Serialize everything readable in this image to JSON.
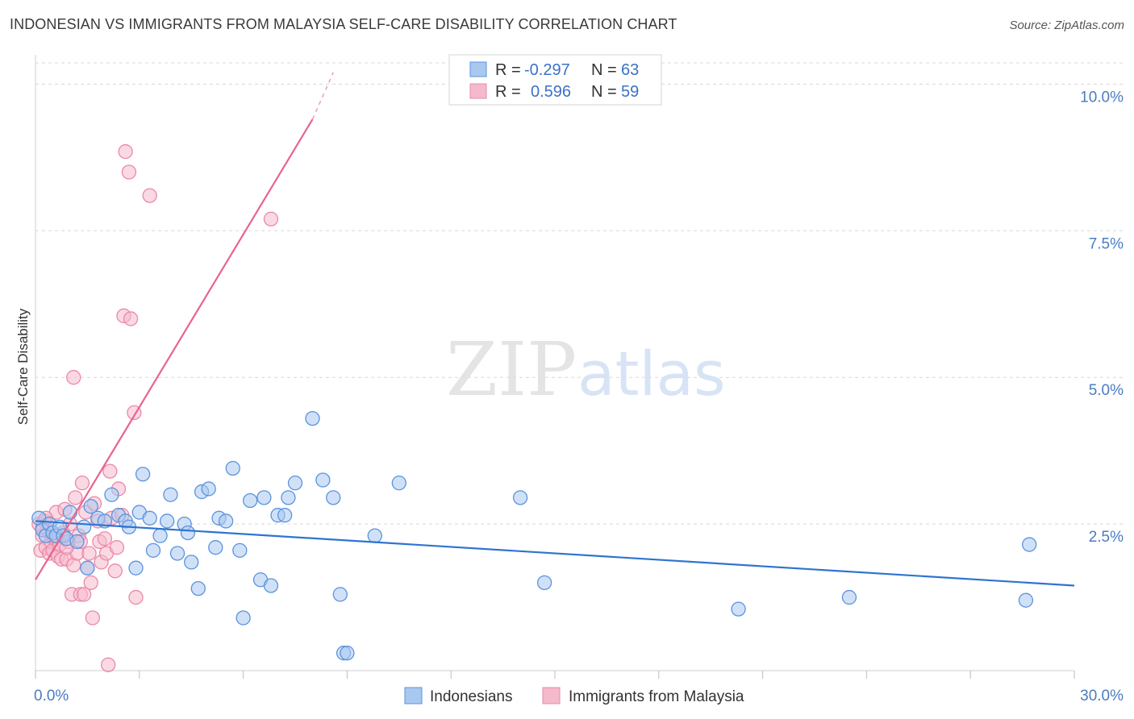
{
  "title": "INDONESIAN VS IMMIGRANTS FROM MALAYSIA SELF-CARE DISABILITY CORRELATION CHART",
  "source": "Source: ZipAtlas.com",
  "watermark": {
    "zip": "ZIP",
    "atlas": "atlas"
  },
  "colors": {
    "blue_fill": "#a9c8f0",
    "blue_stroke": "#5b93de",
    "blue_line": "#2f74d0",
    "pink_fill": "#f5b9cc",
    "pink_stroke": "#ea89a8",
    "pink_line": "#e8648f",
    "tick_text": "#4a7cc4",
    "grid": "#d8d8d8"
  },
  "legend": {
    "rows": [
      {
        "r_label": "R =",
        "r_value": "-0.297",
        "n_label": "N =",
        "n_value": "63"
      },
      {
        "r_label": "R =",
        "r_value": "0.596",
        "n_label": "N =",
        "n_value": "59"
      }
    ]
  },
  "chart_data": {
    "type": "scatter",
    "title": "INDONESIAN VS IMMIGRANTS FROM MALAYSIA SELF-CARE DISABILITY CORRELATION CHART",
    "xlabel": "",
    "ylabel": "Self-Care Disability",
    "xlim": [
      0,
      30
    ],
    "ylim": [
      0,
      10.5
    ],
    "x_tick_labels": [
      {
        "value": 0,
        "label": "0.0%"
      },
      {
        "value": 30,
        "label": "30.0%"
      }
    ],
    "y_ticks": [
      {
        "value": 2.5,
        "label": "2.5%"
      },
      {
        "value": 5.0,
        "label": "5.0%"
      },
      {
        "value": 7.5,
        "label": "7.5%"
      },
      {
        "value": 10.0,
        "label": "10.0%"
      }
    ],
    "x_minor_ticks": [
      0,
      3,
      6,
      9,
      12,
      15,
      18,
      21,
      24,
      27,
      30
    ],
    "series": [
      {
        "name": "Indonesians",
        "color": "blue",
        "trend": {
          "x0": 0,
          "y0": 2.55,
          "x1": 30,
          "y1": 1.45
        },
        "points": [
          [
            0.1,
            2.6
          ],
          [
            0.2,
            2.4
          ],
          [
            0.3,
            2.3
          ],
          [
            0.4,
            2.5
          ],
          [
            0.5,
            2.35
          ],
          [
            0.6,
            2.3
          ],
          [
            0.7,
            2.45
          ],
          [
            0.8,
            2.3
          ],
          [
            0.9,
            2.25
          ],
          [
            1.0,
            2.7
          ],
          [
            1.2,
            2.2
          ],
          [
            1.4,
            2.45
          ],
          [
            1.5,
            1.75
          ],
          [
            1.6,
            2.8
          ],
          [
            1.8,
            2.6
          ],
          [
            2.0,
            2.55
          ],
          [
            2.2,
            3.0
          ],
          [
            2.4,
            2.65
          ],
          [
            2.6,
            2.55
          ],
          [
            2.7,
            2.45
          ],
          [
            2.9,
            1.75
          ],
          [
            3.0,
            2.7
          ],
          [
            3.1,
            3.35
          ],
          [
            3.3,
            2.6
          ],
          [
            3.4,
            2.05
          ],
          [
            3.6,
            2.3
          ],
          [
            3.8,
            2.55
          ],
          [
            3.9,
            3.0
          ],
          [
            4.1,
            2.0
          ],
          [
            4.3,
            2.5
          ],
          [
            4.4,
            2.35
          ],
          [
            4.5,
            1.85
          ],
          [
            4.7,
            1.4
          ],
          [
            4.8,
            3.05
          ],
          [
            5.0,
            3.1
          ],
          [
            5.2,
            2.1
          ],
          [
            5.3,
            2.6
          ],
          [
            5.5,
            2.55
          ],
          [
            5.7,
            3.45
          ],
          [
            5.9,
            2.05
          ],
          [
            6.0,
            0.9
          ],
          [
            6.2,
            2.9
          ],
          [
            6.5,
            1.55
          ],
          [
            6.6,
            2.95
          ],
          [
            6.8,
            1.45
          ],
          [
            7.0,
            2.65
          ],
          [
            7.2,
            2.65
          ],
          [
            7.3,
            2.95
          ],
          [
            7.5,
            3.2
          ],
          [
            8.0,
            4.3
          ],
          [
            8.3,
            3.25
          ],
          [
            8.6,
            2.95
          ],
          [
            8.8,
            1.3
          ],
          [
            8.9,
            0.3
          ],
          [
            9.0,
            0.3
          ],
          [
            9.8,
            2.3
          ],
          [
            10.5,
            3.2
          ],
          [
            14.0,
            2.95
          ],
          [
            14.7,
            1.5
          ],
          [
            20.3,
            1.05
          ],
          [
            23.5,
            1.25
          ],
          [
            28.6,
            1.2
          ],
          [
            28.7,
            2.15
          ]
        ]
      },
      {
        "name": "Immigrants from Malaysia",
        "color": "pink",
        "trend": {
          "x0": 0,
          "y0": 1.55,
          "x1": 8.0,
          "y1": 9.4
        },
        "trend_dashed": {
          "x0": 8.0,
          "y0": 9.4,
          "x1": 8.6,
          "y1": 10.2
        },
        "points": [
          [
            0.1,
            2.5
          ],
          [
            0.15,
            2.05
          ],
          [
            0.2,
            2.3
          ],
          [
            0.25,
            2.55
          ],
          [
            0.3,
            2.1
          ],
          [
            0.35,
            2.4
          ],
          [
            0.4,
            2.0
          ],
          [
            0.45,
            2.2
          ],
          [
            0.5,
            2.05
          ],
          [
            0.55,
            2.25
          ],
          [
            0.6,
            2.7
          ],
          [
            0.65,
            1.95
          ],
          [
            0.7,
            2.15
          ],
          [
            0.75,
            1.9
          ],
          [
            0.8,
            2.35
          ],
          [
            0.85,
            2.75
          ],
          [
            0.9,
            1.9
          ],
          [
            0.95,
            2.2
          ],
          [
            1.0,
            2.5
          ],
          [
            1.05,
            1.3
          ],
          [
            1.1,
            1.8
          ],
          [
            1.15,
            2.95
          ],
          [
            1.2,
            2.0
          ],
          [
            1.25,
            2.3
          ],
          [
            1.3,
            1.3
          ],
          [
            1.35,
            3.2
          ],
          [
            1.4,
            1.3
          ],
          [
            1.45,
            2.7
          ],
          [
            1.5,
            1.75
          ],
          [
            1.55,
            2.0
          ],
          [
            1.6,
            1.5
          ],
          [
            1.65,
            0.9
          ],
          [
            1.7,
            2.85
          ],
          [
            1.8,
            2.55
          ],
          [
            1.85,
            2.2
          ],
          [
            1.9,
            1.85
          ],
          [
            2.0,
            2.25
          ],
          [
            2.05,
            2.0
          ],
          [
            2.1,
            0.1
          ],
          [
            2.15,
            3.4
          ],
          [
            2.2,
            2.6
          ],
          [
            2.3,
            1.7
          ],
          [
            2.35,
            2.1
          ],
          [
            2.4,
            3.1
          ],
          [
            2.5,
            2.65
          ],
          [
            2.55,
            6.05
          ],
          [
            2.6,
            8.85
          ],
          [
            2.7,
            8.5
          ],
          [
            2.75,
            6.0
          ],
          [
            2.85,
            4.4
          ],
          [
            2.9,
            1.25
          ],
          [
            3.3,
            8.1
          ],
          [
            1.1,
            5.0
          ],
          [
            6.8,
            7.7
          ],
          [
            0.3,
            2.6
          ],
          [
            0.5,
            2.3
          ],
          [
            1.3,
            2.2
          ],
          [
            0.9,
            2.1
          ],
          [
            0.2,
            2.45
          ]
        ]
      }
    ]
  },
  "bottom_legend": [
    {
      "label": "Indonesians",
      "color": "blue"
    },
    {
      "label": "Immigrants from Malaysia",
      "color": "pink"
    }
  ]
}
